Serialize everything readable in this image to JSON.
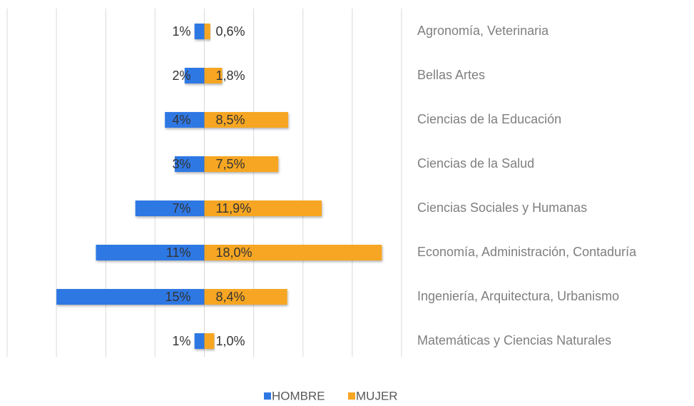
{
  "chart_data": {
    "type": "diverging-bar",
    "categories": [
      "Agronomía, Veterinaria",
      "Bellas Artes",
      "Ciencias de la Educación",
      "Ciencias de la Salud",
      "Ciencias Sociales y Humanas",
      "Economía, Administración, Contaduría",
      "Ingeniería, Arquitectura, Urbanismo",
      "Matemáticas y Ciencias Naturales"
    ],
    "series": [
      {
        "name": "HOMBRE",
        "color": "#2f78e4",
        "values": [
          -1,
          -2,
          -4,
          -3,
          -7,
          -11,
          -15,
          -1
        ],
        "value_labels": [
          "1%",
          "2%",
          "4%",
          "3%",
          "7%",
          "11%",
          "15%",
          "1%"
        ]
      },
      {
        "name": "MUJER",
        "color": "#f6a623",
        "values": [
          0.6,
          1.8,
          8.5,
          7.5,
          11.9,
          18.0,
          8.4,
          1.0
        ],
        "value_labels": [
          "0,6%",
          "1,8%",
          "8,5%",
          "7,5%",
          "11,9%",
          "18,0%",
          "8,4%",
          "1,0%"
        ]
      }
    ],
    "xlim": [
      -20,
      20
    ],
    "xticks": [
      -20,
      -15,
      -10,
      -5,
      0,
      5,
      10,
      15,
      20
    ],
    "grid": true,
    "legend": "bottom"
  }
}
